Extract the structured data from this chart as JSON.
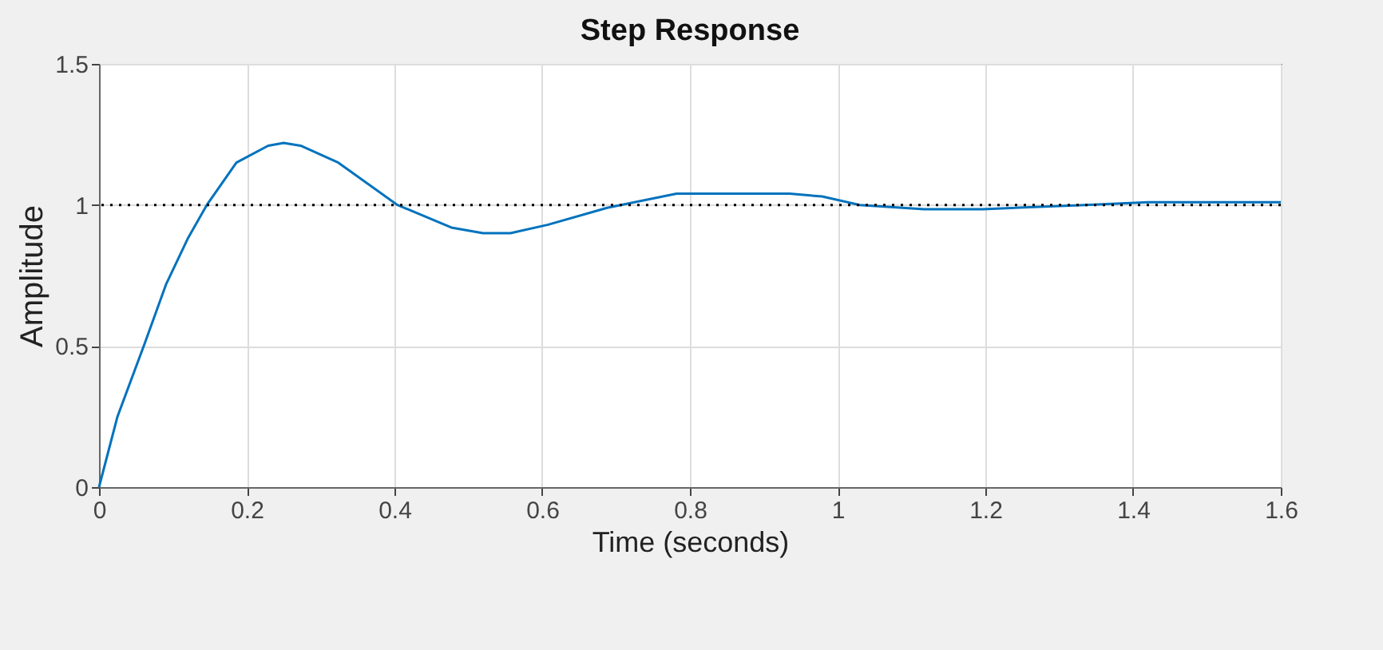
{
  "chart_data": {
    "type": "line",
    "title": "Step Response",
    "xlabel": "Time (seconds)",
    "ylabel": "Amplitude",
    "x": [
      0,
      0.025,
      0.062,
      0.091,
      0.12,
      0.146,
      0.186,
      0.229,
      0.25,
      0.273,
      0.324,
      0.404,
      0.477,
      0.52,
      0.557,
      0.608,
      0.688,
      0.782,
      0.86,
      0.935,
      0.979,
      1.03,
      1.117,
      1.197,
      1.335,
      1.42,
      1.6
    ],
    "series": [
      {
        "color": "#0072bd",
        "values": [
          0,
          0.25,
          0.51,
          0.72,
          0.88,
          1.0,
          1.15,
          1.21,
          1.22,
          1.21,
          1.15,
          1.0,
          0.92,
          0.9,
          0.9,
          0.93,
          0.99,
          1.04,
          1.04,
          1.04,
          1.03,
          1.0,
          0.985,
          0.985,
          1.0,
          1.01,
          1.01
        ]
      }
    ],
    "xlim": [
      0,
      1.6
    ],
    "xticks": [
      0,
      0.2,
      0.4,
      0.6,
      0.8,
      1,
      1.2,
      1.4,
      1.6
    ],
    "ylim": [
      0,
      1.5
    ],
    "yticks": [
      0,
      0.5,
      1,
      1.5
    ],
    "ref_lines": [
      {
        "axis": "y",
        "value": 1,
        "color": "#000000",
        "line_style": "dotted"
      }
    ],
    "grid": true,
    "line_style": "solid"
  }
}
